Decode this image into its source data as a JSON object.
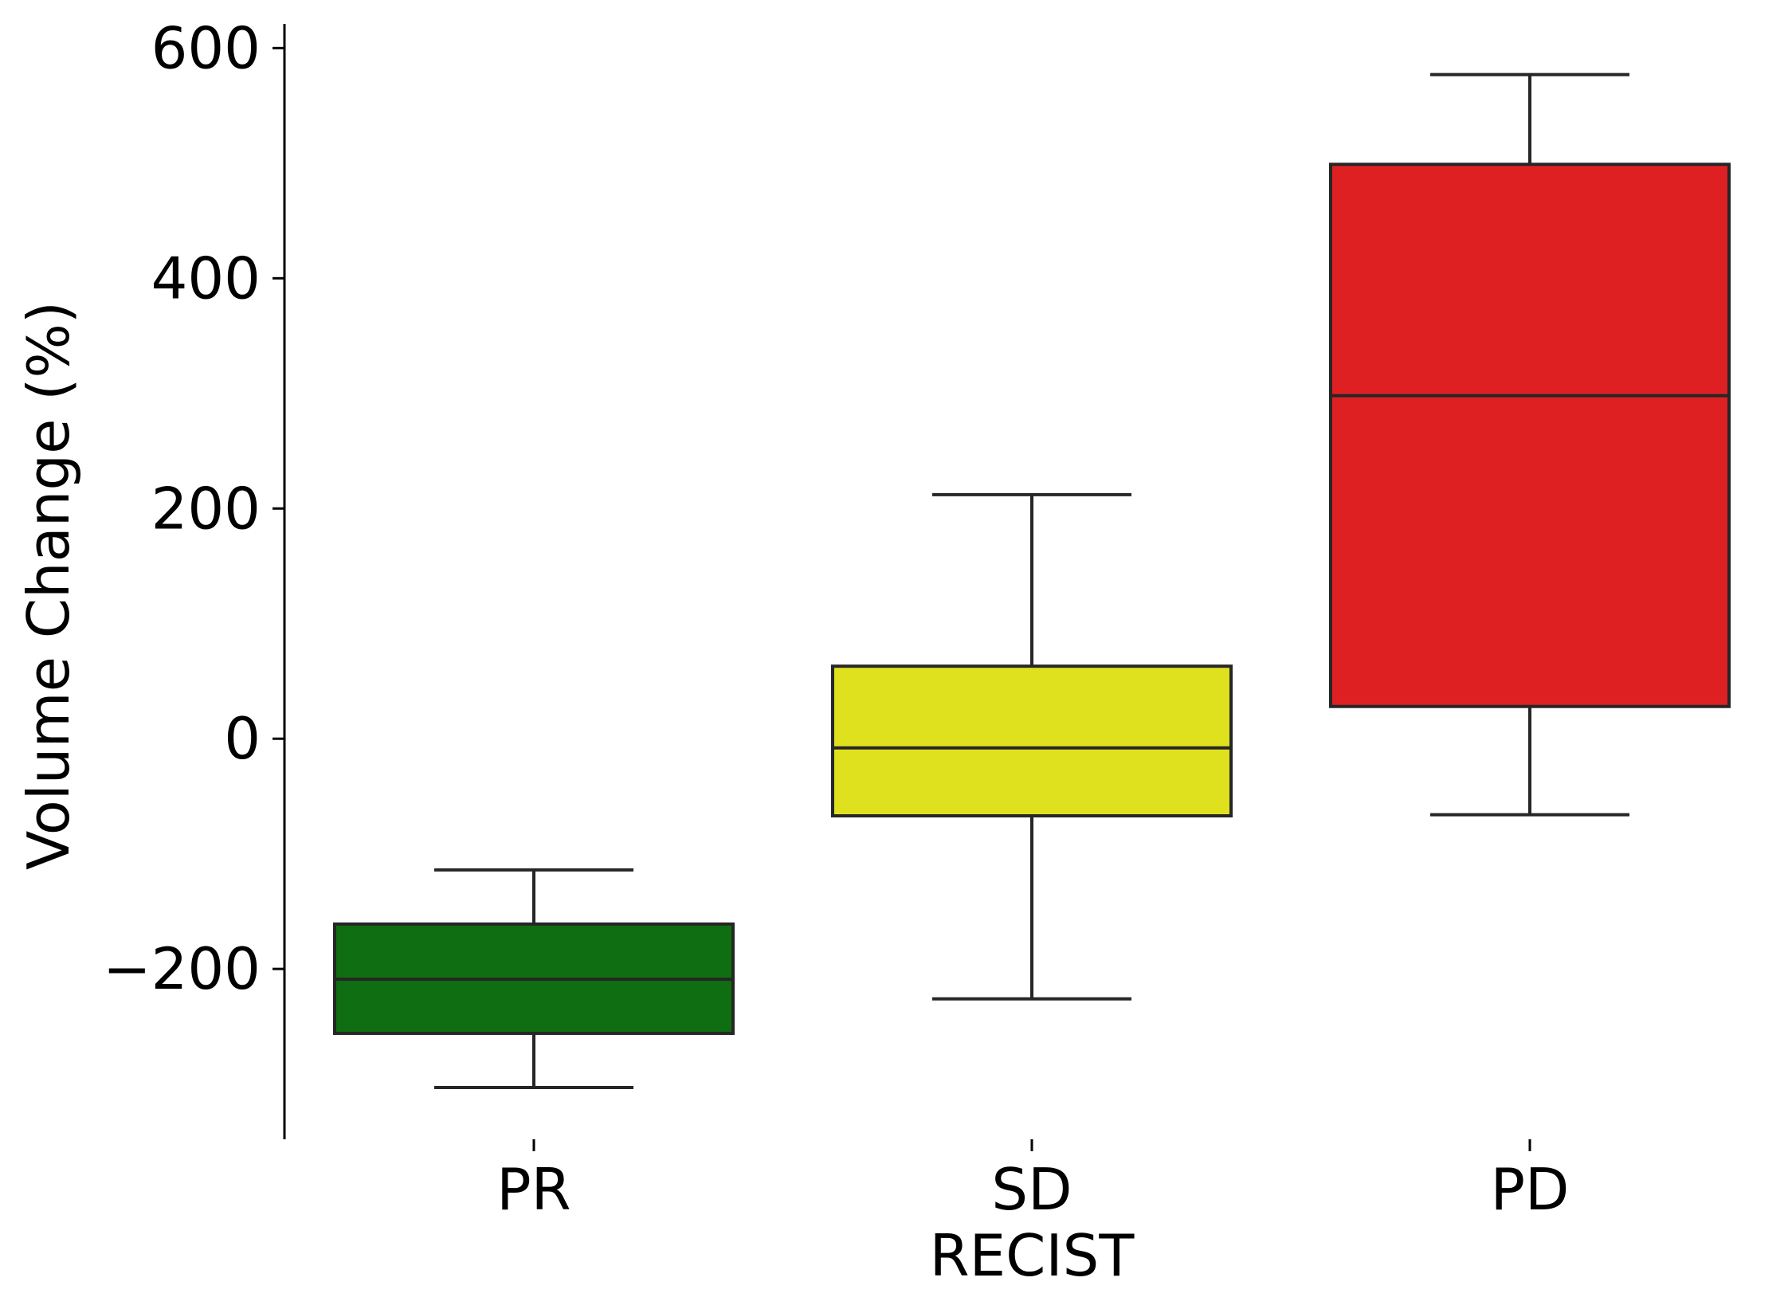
{
  "chart_data": {
    "type": "box",
    "title": "",
    "xlabel": "RECIST",
    "ylabel": "Volume Change (%)",
    "categories": [
      "PR",
      "SD",
      "PD"
    ],
    "colors": [
      "#0f6e11",
      "#dfe11e",
      "#df2022"
    ],
    "boxes": [
      {
        "name": "PR",
        "whisker_low": -303,
        "q1": -256,
        "median": -209,
        "q3": -161,
        "whisker_high": -114
      },
      {
        "name": "SD",
        "whisker_low": -226,
        "q1": -67,
        "median": -8,
        "q3": 63,
        "whisker_high": 212
      },
      {
        "name": "PD",
        "whisker_low": -66,
        "q1": 28,
        "median": 298,
        "q3": 499,
        "whisker_high": 577
      }
    ],
    "yticks": [
      -200,
      0,
      200,
      400,
      600
    ],
    "ytick_labels": [
      "−200",
      "0",
      "200",
      "400",
      "600"
    ],
    "ylim": [
      -348,
      621
    ],
    "grid": false,
    "legend": "none"
  }
}
